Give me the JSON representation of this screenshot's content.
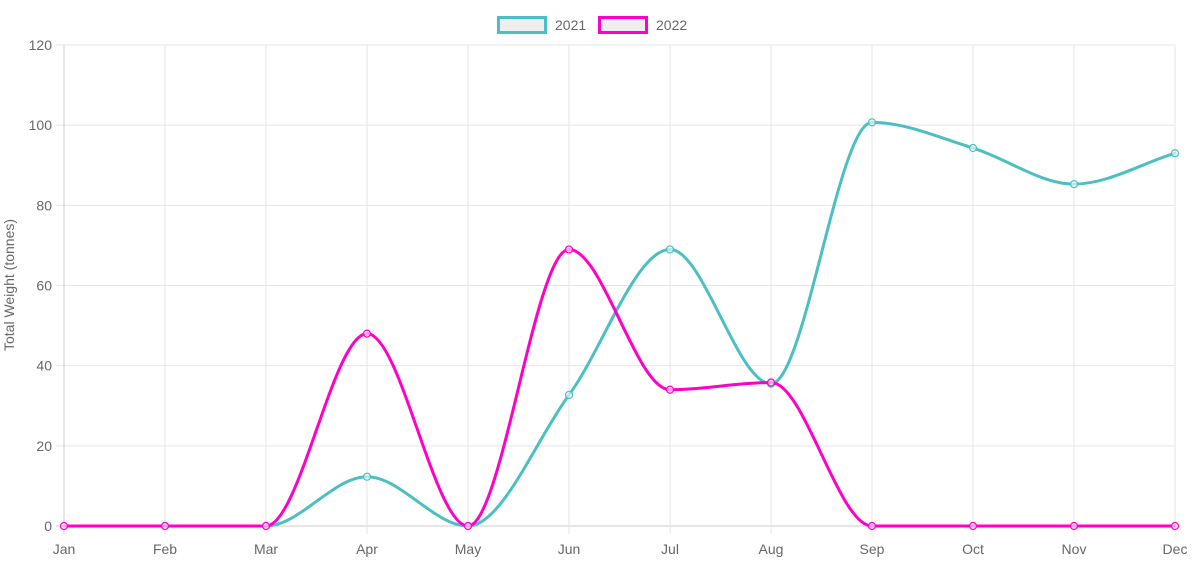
{
  "chart_data": {
    "type": "line",
    "categories": [
      "Jan",
      "Feb",
      "Mar",
      "Apr",
      "May",
      "Jun",
      "Jul",
      "Aug",
      "Sep",
      "Oct",
      "Nov",
      "Dec"
    ],
    "series": [
      {
        "name": "2021",
        "color": "#4bbfc2",
        "values": [
          0,
          0,
          0,
          12.3,
          0,
          32.7,
          69,
          35.5,
          100.7,
          94.3,
          85.3,
          93
        ]
      },
      {
        "name": "2022",
        "color": "#ff00c8",
        "values": [
          0,
          0,
          0,
          48,
          0,
          69,
          34,
          35.8,
          0,
          0,
          0,
          0
        ]
      }
    ],
    "ylabel": "Total Weight (tonnes)",
    "ylim": [
      0,
      120
    ],
    "yticks": [
      0,
      20,
      40,
      60,
      80,
      100,
      120
    ],
    "grid": true,
    "legend_position": "top-center"
  }
}
